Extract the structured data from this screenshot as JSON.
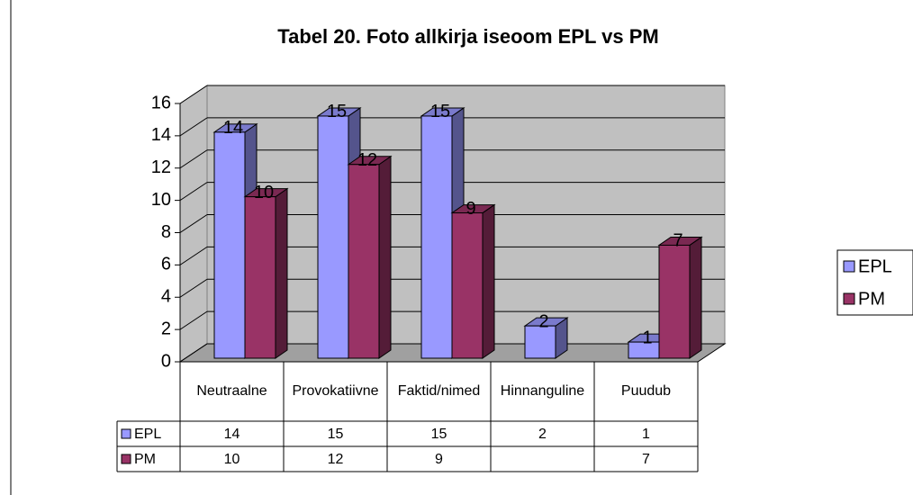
{
  "chart_data": {
    "type": "bar3d",
    "title": "Tabel 20. Foto allkirja iseoom EPL vs PM",
    "categories": [
      "Neutraalne",
      "Provokatiivne",
      "Faktid/nimed",
      "Hinnanguline",
      "Puudub"
    ],
    "series": [
      {
        "name": "EPL",
        "color": "#9999ff",
        "values": [
          14,
          15,
          15,
          2,
          1
        ]
      },
      {
        "name": "PM",
        "color": "#993366",
        "values": [
          10,
          12,
          9,
          null,
          7
        ]
      }
    ],
    "ylim": [
      0,
      16
    ],
    "yticks": [
      0,
      2,
      4,
      6,
      8,
      10,
      12,
      14,
      16
    ],
    "grid": true,
    "legend": "right",
    "data_table": true
  }
}
